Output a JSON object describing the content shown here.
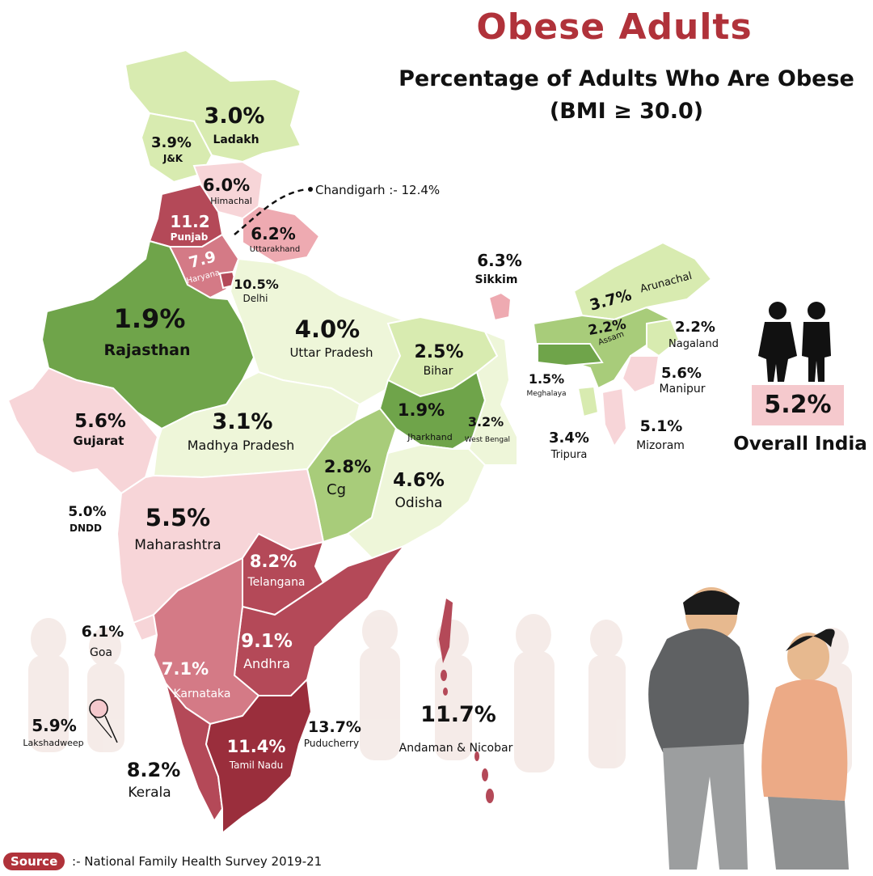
{
  "header": {
    "title": "Obese Adults",
    "subtitle_line1": "Percentage of Adults Who Are Obese",
    "subtitle_line2": "(BMI ≥ 30.0)"
  },
  "colors": {
    "title": "#b0323a",
    "lightest_green": "#eef6d9",
    "light_green": "#d8ebb0",
    "mid_green": "#a8cc7a",
    "dark_green": "#6fa44a",
    "light_pink": "#f7d5d8",
    "pink": "#eeaab1",
    "mid_red": "#d47a86",
    "red": "#b44958",
    "dark_red": "#9a2e3c"
  },
  "overall": {
    "value": "5.2%",
    "label": "Overall India"
  },
  "annotation": {
    "chandigarh": "Chandigarh :- 12.4%"
  },
  "source": {
    "badge": "Source",
    "text": ":- National Family Health Survey 2019-21"
  },
  "regions": [
    {
      "name": "Ladakh",
      "value": "3.0%"
    },
    {
      "name": "J&K",
      "value": "3.9%"
    },
    {
      "name": "Himachal",
      "value": "6.0%"
    },
    {
      "name": "Punjab",
      "value": "11.2"
    },
    {
      "name": "Uttarakhand",
      "value": "6.2%"
    },
    {
      "name": "Haryana",
      "value": "7.9"
    },
    {
      "name": "Delhi",
      "value": "10.5%"
    },
    {
      "name": "Rajasthan",
      "value": "1.9%"
    },
    {
      "name": "Uttar Pradesh",
      "value": "4.0%"
    },
    {
      "name": "Sikkim",
      "value": "6.3%"
    },
    {
      "name": "Arunachal",
      "value": "3.7%"
    },
    {
      "name": "Assam",
      "value": "2.2%"
    },
    {
      "name": "Nagaland",
      "value": "2.2%"
    },
    {
      "name": "Bihar",
      "value": "2.5%"
    },
    {
      "name": "Meghalaya",
      "value": "1.5%"
    },
    {
      "name": "Manipur",
      "value": "5.6%"
    },
    {
      "name": "Gujarat",
      "value": "5.6%"
    },
    {
      "name": "Madhya Pradesh",
      "value": "3.1%"
    },
    {
      "name": "Jharkhand",
      "value": "1.9%"
    },
    {
      "name": "West Bengal",
      "value": "3.2%"
    },
    {
      "name": "Tripura",
      "value": "3.4%"
    },
    {
      "name": "Mizoram",
      "value": "5.1%"
    },
    {
      "name": "Cg",
      "value": "2.8%"
    },
    {
      "name": "Odisha",
      "value": "4.6%"
    },
    {
      "name": "DNDD",
      "value": "5.0%"
    },
    {
      "name": "Maharashtra",
      "value": "5.5%"
    },
    {
      "name": "Telangana",
      "value": "8.2%"
    },
    {
      "name": "Goa",
      "value": "6.1%"
    },
    {
      "name": "Andhra",
      "value": "9.1%"
    },
    {
      "name": "Karnataka",
      "value": "7.1%"
    },
    {
      "name": "Lakshadweep",
      "value": "5.9%"
    },
    {
      "name": "Puducherry",
      "value": "13.7%"
    },
    {
      "name": "Tamil Nadu",
      "value": "11.4%"
    },
    {
      "name": "Kerala",
      "value": "8.2%"
    },
    {
      "name": "Andaman & Nicobar",
      "value": "11.7%"
    }
  ]
}
